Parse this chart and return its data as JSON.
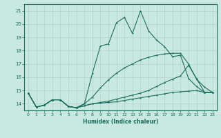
{
  "xlabel": "Humidex (Indice chaleur)",
  "xlim": [
    -0.5,
    23.5
  ],
  "ylim": [
    13.5,
    21.5
  ],
  "yticks": [
    14,
    15,
    16,
    17,
    18,
    19,
    20,
    21
  ],
  "xticks": [
    0,
    1,
    2,
    3,
    4,
    5,
    6,
    7,
    8,
    9,
    10,
    11,
    12,
    13,
    14,
    15,
    16,
    17,
    18,
    19,
    20,
    21,
    22,
    23
  ],
  "bg_color": "#c8e8e0",
  "grid_color": "#b0d0c8",
  "line_color": "#1a6e5e",
  "lines": [
    {
      "x": [
        0,
        1,
        2,
        3,
        4,
        5,
        6,
        7,
        8,
        9,
        10,
        11,
        12,
        13,
        14,
        15,
        16,
        17,
        18,
        19,
        20,
        21,
        22,
        23
      ],
      "y": [
        14.8,
        13.75,
        13.9,
        14.3,
        14.3,
        13.8,
        13.7,
        14.0,
        16.3,
        18.35,
        18.5,
        20.1,
        20.5,
        19.3,
        21.0,
        19.5,
        18.8,
        18.3,
        17.55,
        17.65,
        15.9,
        15.3,
        14.85,
        14.85
      ]
    },
    {
      "x": [
        0,
        1,
        2,
        3,
        4,
        5,
        6,
        7,
        8,
        9,
        10,
        11,
        12,
        13,
        14,
        15,
        16,
        17,
        18,
        19,
        20,
        21,
        22,
        23
      ],
      "y": [
        14.8,
        13.75,
        13.9,
        14.3,
        14.3,
        13.8,
        13.7,
        14.0,
        14.5,
        15.2,
        15.8,
        16.3,
        16.7,
        17.0,
        17.3,
        17.5,
        17.65,
        17.75,
        17.8,
        17.8,
        17.0,
        15.85,
        15.25,
        14.85
      ]
    },
    {
      "x": [
        0,
        1,
        2,
        3,
        4,
        5,
        6,
        7,
        8,
        9,
        10,
        11,
        12,
        13,
        14,
        15,
        16,
        17,
        18,
        19,
        20,
        21,
        22,
        23
      ],
      "y": [
        14.8,
        13.75,
        13.9,
        14.3,
        14.3,
        13.8,
        13.7,
        13.85,
        14.0,
        14.1,
        14.2,
        14.35,
        14.5,
        14.65,
        14.8,
        15.0,
        15.3,
        15.6,
        15.85,
        16.1,
        16.9,
        15.9,
        14.85,
        14.85
      ]
    },
    {
      "x": [
        0,
        1,
        2,
        3,
        4,
        5,
        6,
        7,
        8,
        9,
        10,
        11,
        12,
        13,
        14,
        15,
        16,
        17,
        18,
        19,
        20,
        21,
        22,
        23
      ],
      "y": [
        14.8,
        13.75,
        13.9,
        14.3,
        14.3,
        13.8,
        13.7,
        13.85,
        14.0,
        14.05,
        14.1,
        14.15,
        14.25,
        14.35,
        14.45,
        14.55,
        14.65,
        14.75,
        14.85,
        14.9,
        14.95,
        15.0,
        14.85,
        14.85
      ]
    }
  ]
}
